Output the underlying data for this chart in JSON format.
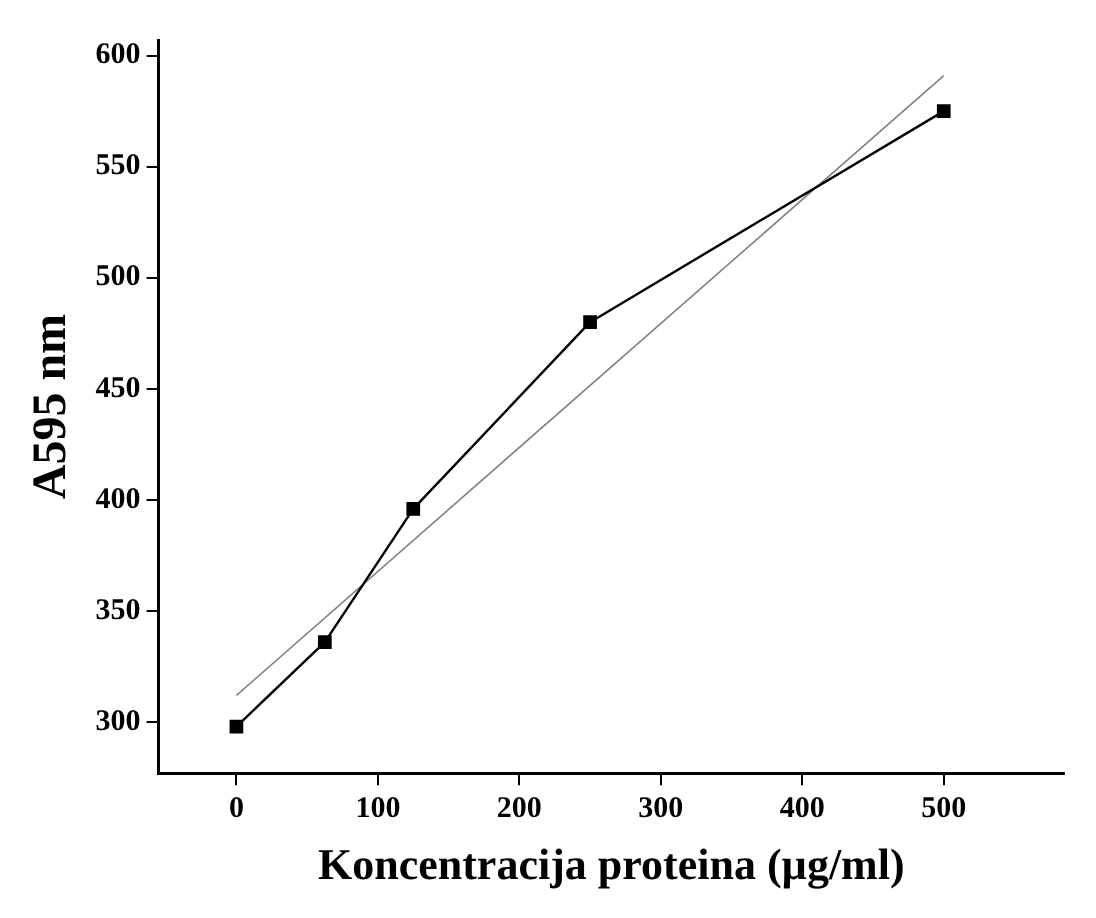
{
  "chart_data": {
    "type": "line",
    "xlabel": "Koncentracija proteina (µg/ml)",
    "ylabel": "A595 nm",
    "xlim": [
      -55,
      585
    ],
    "xticks": [
      0,
      100,
      200,
      300,
      400,
      500
    ],
    "ylim": [
      277,
      607
    ],
    "yticks": [
      300,
      350,
      400,
      450,
      500,
      550,
      600
    ],
    "grid": false,
    "legend": false,
    "series": [
      {
        "type": "line",
        "color": "#000000",
        "marker": "square",
        "x": [
          0,
          62.5,
          125,
          250,
          500
        ],
        "values": [
          298,
          336,
          396,
          480,
          575
        ]
      },
      {
        "type": "line",
        "color": "#808080",
        "marker": "none",
        "x": [
          0,
          500
        ],
        "values": [
          312,
          591
        ]
      }
    ]
  }
}
